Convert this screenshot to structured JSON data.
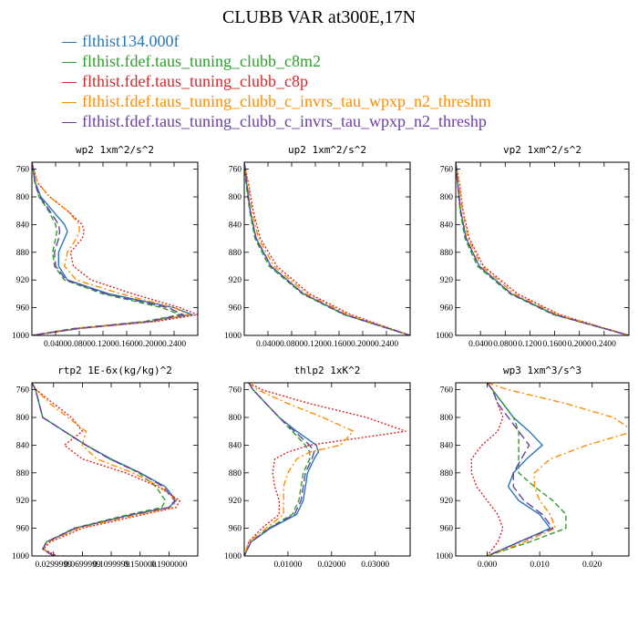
{
  "title": "CLUBB VAR at300E,17N",
  "chart_data": {
    "series_info": [
      {
        "name": "flthist134.000f",
        "color": "#2878b5",
        "dash": "solid"
      },
      {
        "name": "flthist.fdef.taus_tuning_clubb_c8m2",
        "color": "#2ca02c",
        "dash": "dash"
      },
      {
        "name": "flthist.fdef.taus_tuning_clubb_c8p",
        "color": "#d62728",
        "dash": "dot"
      },
      {
        "name": "flthist.fdef.taus_tuning_clubb_c_invrs_tau_wpxp_n2_threshm",
        "color": "#ff8c00",
        "dash": "dashdot"
      },
      {
        "name": "flthist.fdef.taus_tuning_clubb_c_invrs_tau_wpxp_n2_threshp",
        "color": "#6b3fa0",
        "dash": "longdash"
      }
    ],
    "panels": [
      {
        "type": "line",
        "title": "wp2  1xm^2/s^2",
        "xlim": [
          0,
          0.28
        ],
        "ylim": [
          1000,
          750
        ],
        "xticks": [
          0.04,
          0.08,
          0.12,
          0.16,
          0.2,
          0.24
        ],
        "xtick_labels": [
          "0.0400",
          "0.0800",
          "0.1200",
          "0.1600",
          "0.2000",
          "0.2400"
        ],
        "yticks": [
          760,
          800,
          840,
          880,
          920,
          960,
          1000
        ],
        "y": [
          750,
          760,
          780,
          800,
          820,
          840,
          850,
          860,
          880,
          900,
          920,
          940,
          960,
          970,
          980,
          990,
          1000
        ],
        "series": [
          {
            "values": [
              0.0,
              0.002,
              0.006,
              0.015,
              0.035,
              0.055,
              0.06,
              0.055,
              0.045,
              0.045,
              0.06,
              0.13,
              0.24,
              0.27,
              0.2,
              0.08,
              0.0
            ]
          },
          {
            "values": [
              0.0,
              0.002,
              0.005,
              0.012,
              0.028,
              0.04,
              0.042,
              0.04,
              0.035,
              0.038,
              0.055,
              0.12,
              0.22,
              0.25,
              0.19,
              0.07,
              0.0
            ]
          },
          {
            "values": [
              0.0,
              0.003,
              0.01,
              0.03,
              0.06,
              0.085,
              0.088,
              0.085,
              0.065,
              0.07,
              0.1,
              0.17,
              0.25,
              0.28,
              0.21,
              0.08,
              0.0
            ]
          },
          {
            "values": [
              0.0,
              0.003,
              0.01,
              0.03,
              0.06,
              0.08,
              0.08,
              0.075,
              0.06,
              0.055,
              0.075,
              0.15,
              0.24,
              0.265,
              0.2,
              0.075,
              0.0
            ]
          },
          {
            "values": [
              0.0,
              0.002,
              0.005,
              0.013,
              0.03,
              0.045,
              0.047,
              0.045,
              0.038,
              0.04,
              0.058,
              0.125,
              0.23,
              0.255,
              0.195,
              0.075,
              0.0
            ]
          }
        ]
      },
      {
        "type": "line",
        "title": "up2  1xm^2/s^2",
        "xlim": [
          0,
          0.28
        ],
        "ylim": [
          1000,
          750
        ],
        "xticks": [
          0.04,
          0.08,
          0.12,
          0.16,
          0.2,
          0.24
        ],
        "xtick_labels": [
          "0.0400",
          "0.0800",
          "0.1200",
          "0.1600",
          "0.2000",
          "0.2400"
        ],
        "yticks": [
          760,
          800,
          840,
          880,
          920,
          960,
          1000
        ],
        "y": [
          750,
          780,
          820,
          860,
          900,
          940,
          970,
          1000
        ],
        "series": [
          {
            "values": [
              0.0,
              0.004,
              0.01,
              0.02,
              0.045,
              0.1,
              0.17,
              0.28
            ]
          },
          {
            "values": [
              0.0,
              0.003,
              0.009,
              0.018,
              0.042,
              0.098,
              0.168,
              0.28
            ]
          },
          {
            "values": [
              0.0,
              0.007,
              0.015,
              0.027,
              0.055,
              0.11,
              0.18,
              0.28
            ]
          },
          {
            "values": [
              0.0,
              0.006,
              0.013,
              0.024,
              0.05,
              0.105,
              0.175,
              0.28
            ]
          },
          {
            "values": [
              0.0,
              0.004,
              0.01,
              0.02,
              0.045,
              0.1,
              0.17,
              0.28
            ]
          }
        ]
      },
      {
        "type": "line",
        "title": "vp2  1xm^2/s^2",
        "xlim": [
          0,
          0.28
        ],
        "ylim": [
          1000,
          750
        ],
        "xticks": [
          0.04,
          0.08,
          0.12,
          0.16,
          0.2,
          0.24
        ],
        "xtick_labels": [
          "0.0400",
          "0.0800",
          "0.1200",
          "0.1600",
          "0.2000",
          "0.2400"
        ],
        "yticks": [
          760,
          800,
          840,
          880,
          920,
          960,
          1000
        ],
        "y": [
          750,
          780,
          820,
          860,
          900,
          940,
          970,
          1000
        ],
        "series": [
          {
            "values": [
              0.0,
              0.003,
              0.008,
              0.017,
              0.038,
              0.09,
              0.16,
              0.28
            ]
          },
          {
            "values": [
              0.0,
              0.003,
              0.007,
              0.015,
              0.035,
              0.088,
              0.158,
              0.28
            ]
          },
          {
            "values": [
              0.0,
              0.006,
              0.012,
              0.022,
              0.045,
              0.1,
              0.168,
              0.28
            ]
          },
          {
            "values": [
              0.0,
              0.005,
              0.011,
              0.02,
              0.042,
              0.095,
              0.165,
              0.28
            ]
          },
          {
            "values": [
              0.0,
              0.003,
              0.008,
              0.017,
              0.038,
              0.09,
              0.16,
              0.28
            ]
          }
        ]
      },
      {
        "type": "line",
        "title": "rtp2  1E-6x(kg/kg)^2",
        "xlim": [
          0,
          0.23
        ],
        "ylim": [
          1000,
          750
        ],
        "xticks": [
          0.03,
          0.07,
          0.11,
          0.15,
          0.19
        ],
        "xtick_labels": [
          "0.0299999",
          "0.0699999",
          "0.1099999",
          "0.150000",
          "0.1900000"
        ],
        "yticks": [
          760,
          800,
          840,
          880,
          920,
          960,
          1000
        ],
        "y": [
          750,
          760,
          780,
          800,
          820,
          840,
          860,
          880,
          900,
          920,
          930,
          940,
          960,
          980,
          990,
          1000
        ],
        "series": [
          {
            "values": [
              0.0,
              0.005,
              0.01,
              0.015,
              0.045,
              0.075,
              0.11,
              0.15,
              0.185,
              0.2,
              0.19,
              0.14,
              0.06,
              0.02,
              0.015,
              0.03
            ]
          },
          {
            "values": [
              0.0,
              0.005,
              0.01,
              0.015,
              0.045,
              0.075,
              0.108,
              0.148,
              0.172,
              0.185,
              0.18,
              0.135,
              0.058,
              0.02,
              0.015,
              0.03
            ]
          },
          {
            "values": [
              0.0,
              0.006,
              0.03,
              0.055,
              0.07,
              0.045,
              0.07,
              0.13,
              0.175,
              0.205,
              0.2,
              0.155,
              0.07,
              0.025,
              0.016,
              0.035
            ]
          },
          {
            "values": [
              0.0,
              0.006,
              0.025,
              0.05,
              0.075,
              0.07,
              0.09,
              0.14,
              0.178,
              0.2,
              0.195,
              0.148,
              0.065,
              0.022,
              0.015,
              0.032
            ]
          },
          {
            "values": [
              0.0,
              0.005,
              0.01,
              0.015,
              0.045,
              0.075,
              0.108,
              0.15,
              0.182,
              0.198,
              0.19,
              0.14,
              0.06,
              0.02,
              0.015,
              0.03
            ]
          }
        ]
      },
      {
        "type": "line",
        "title": "thlp2  1xK^2",
        "xlim": [
          0,
          0.038
        ],
        "ylim": [
          1000,
          750
        ],
        "xticks": [
          0.01,
          0.02,
          0.03
        ],
        "xtick_labels": [
          "0.01000",
          "0.02000",
          "0.03000"
        ],
        "yticks": [
          760,
          800,
          840,
          880,
          920,
          960,
          1000
        ],
        "y": [
          750,
          760,
          780,
          800,
          820,
          840,
          850,
          860,
          880,
          900,
          920,
          940,
          960,
          980,
          1000
        ],
        "series": [
          {
            "values": [
              0.001,
              0.002,
              0.005,
              0.008,
              0.012,
              0.0165,
              0.017,
              0.016,
              0.0145,
              0.014,
              0.0135,
              0.012,
              0.006,
              0.0015,
              0.0
            ]
          },
          {
            "values": [
              0.001,
              0.002,
              0.005,
              0.008,
              0.011,
              0.014,
              0.015,
              0.015,
              0.0135,
              0.013,
              0.0125,
              0.011,
              0.0055,
              0.0015,
              0.0
            ]
          },
          {
            "values": [
              0.001,
              0.004,
              0.015,
              0.028,
              0.037,
              0.015,
              0.01,
              0.007,
              0.0065,
              0.007,
              0.008,
              0.008,
              0.004,
              0.001,
              0.0
            ]
          },
          {
            "values": [
              0.001,
              0.003,
              0.01,
              0.018,
              0.025,
              0.022,
              0.015,
              0.012,
              0.01,
              0.009,
              0.009,
              0.009,
              0.005,
              0.001,
              0.0
            ]
          },
          {
            "values": [
              0.001,
              0.002,
              0.005,
              0.008,
              0.0115,
              0.015,
              0.016,
              0.0155,
              0.014,
              0.0135,
              0.013,
              0.0115,
              0.0058,
              0.0015,
              0.0
            ]
          }
        ]
      },
      {
        "type": "line",
        "title": "wp3  1xm^3/s^3",
        "xlim": [
          -0.006,
          0.027
        ],
        "ylim": [
          1000,
          750
        ],
        "xticks": [
          0.0,
          0.01,
          0.02
        ],
        "xtick_labels": [
          "0.000",
          "0.010",
          "0.020"
        ],
        "yticks": [
          760,
          800,
          840,
          880,
          920,
          960,
          1000
        ],
        "y": [
          750,
          760,
          780,
          800,
          820,
          840,
          860,
          880,
          900,
          920,
          940,
          960,
          980,
          1000
        ],
        "series": [
          {
            "values": [
              0.0,
              0.001,
              0.003,
              0.005,
              0.008,
              0.0105,
              0.0075,
              0.005,
              0.004,
              0.006,
              0.01,
              0.012,
              0.006,
              0.0
            ]
          },
          {
            "values": [
              0.0,
              0.001,
              0.003,
              0.005,
              0.006,
              0.006,
              0.006,
              0.006,
              0.009,
              0.0125,
              0.015,
              0.015,
              0.008,
              0.0
            ]
          },
          {
            "values": [
              0.0,
              0.001,
              0.002,
              0.003,
              0.002,
              -0.001,
              -0.003,
              -0.003,
              -0.002,
              0.0,
              0.002,
              0.003,
              0.002,
              0.0
            ]
          },
          {
            "values": [
              0.0,
              0.004,
              0.015,
              0.024,
              0.028,
              0.019,
              0.012,
              0.009,
              0.009,
              0.01,
              0.012,
              0.013,
              0.007,
              0.0
            ]
          },
          {
            "values": [
              0.0,
              0.001,
              0.002,
              0.004,
              0.006,
              0.008,
              0.0065,
              0.005,
              0.005,
              0.007,
              0.0105,
              0.0125,
              0.006,
              0.0
            ]
          }
        ]
      }
    ]
  }
}
